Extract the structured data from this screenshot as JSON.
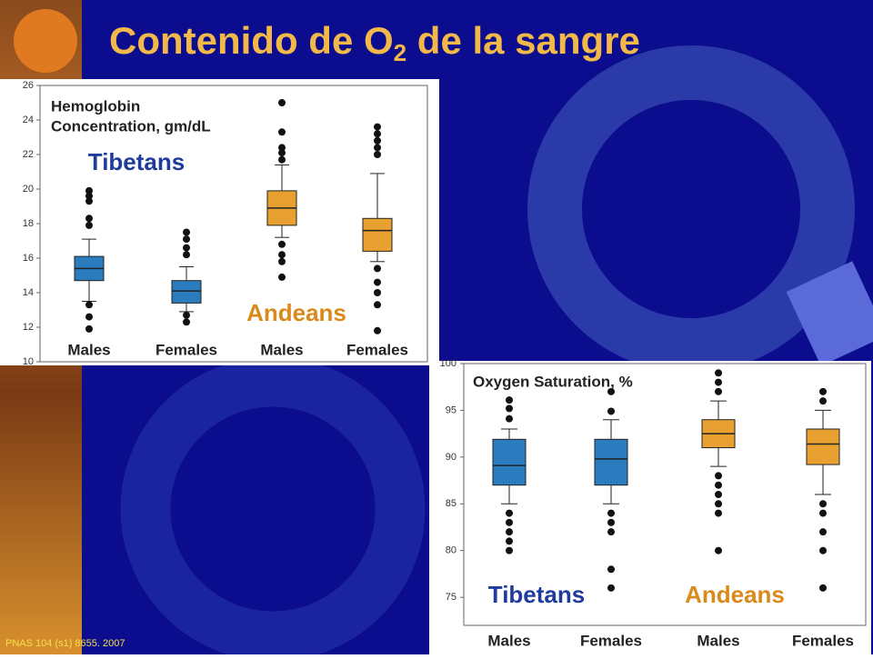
{
  "title": [
    "Contenido de O",
    "2",
    " de la sangre"
  ],
  "citation": "PNAS 104 (s1) 8655. 2007",
  "chart_data": [
    {
      "type": "box",
      "title": [
        "Hemoglobin",
        "Concentration, gm/dL"
      ],
      "categories": [
        "Males",
        "Females",
        "Males",
        "Females"
      ],
      "ylim": [
        10,
        26
      ],
      "yticks": [
        10,
        12,
        14,
        16,
        18,
        20,
        22,
        24,
        26
      ],
      "boxes": [
        {
          "color": "#2b7bbf",
          "low": 13.5,
          "q1": 14.7,
          "median": 15.4,
          "q3": 16.1,
          "high": 17.1,
          "outliers": [
            19.9,
            19.6,
            19.3,
            18.3,
            17.9,
            13.3,
            12.6,
            11.9
          ]
        },
        {
          "color": "#2b7bbf",
          "low": 12.9,
          "q1": 13.4,
          "median": 14.1,
          "q3": 14.7,
          "high": 15.5,
          "outliers": [
            17.5,
            17.1,
            16.6,
            16.2,
            12.7,
            12.3
          ]
        },
        {
          "color": "#e8a130",
          "low": 17.2,
          "q1": 17.9,
          "median": 18.9,
          "q3": 19.9,
          "high": 21.4,
          "outliers": [
            25.0,
            23.3,
            22.4,
            22.1,
            21.7,
            16.8,
            16.2,
            15.8,
            14.9
          ]
        },
        {
          "color": "#e8a130",
          "low": 15.8,
          "q1": 16.4,
          "median": 17.6,
          "q3": 18.3,
          "high": 20.9,
          "outliers": [
            23.6,
            23.2,
            22.8,
            22.4,
            22.0,
            15.4,
            14.6,
            14.0,
            13.3,
            11.8
          ]
        }
      ],
      "annotations": [
        {
          "text": "Tibetans",
          "color": "#1f3c9c"
        },
        {
          "text": "Andeans",
          "color": "#d98a1a"
        }
      ]
    },
    {
      "type": "box",
      "title": [
        "Oxygen Saturation, %"
      ],
      "categories": [
        "Males",
        "Females",
        "Males",
        "Females"
      ],
      "ylim": [
        72,
        100
      ],
      "yticks": [
        75,
        80,
        85,
        90,
        95,
        100
      ],
      "boxes": [
        {
          "color": "#2b7bbf",
          "low": 85,
          "q1": 87,
          "median": 89.1,
          "q3": 91.9,
          "high": 93,
          "outliers": [
            96.1,
            95.2,
            94.1,
            84,
            83,
            82,
            81,
            80
          ]
        },
        {
          "color": "#2b7bbf",
          "low": 85,
          "q1": 87,
          "median": 89.8,
          "q3": 91.9,
          "high": 94,
          "outliers": [
            97,
            94.9,
            84,
            83,
            82,
            78,
            76
          ]
        },
        {
          "color": "#e8a130",
          "low": 89,
          "q1": 91,
          "median": 92.5,
          "q3": 94,
          "high": 96,
          "outliers": [
            99,
            98,
            97,
            88,
            87,
            86,
            85,
            84,
            80
          ]
        },
        {
          "color": "#e8a130",
          "low": 86,
          "q1": 89.2,
          "median": 91.4,
          "q3": 93,
          "high": 95,
          "outliers": [
            97,
            96,
            85,
            84,
            82,
            80,
            76
          ]
        }
      ],
      "annotations": [
        {
          "text": "Tibetans",
          "color": "#1f3c9c"
        },
        {
          "text": "Andeans",
          "color": "#d98a1a"
        }
      ]
    }
  ]
}
